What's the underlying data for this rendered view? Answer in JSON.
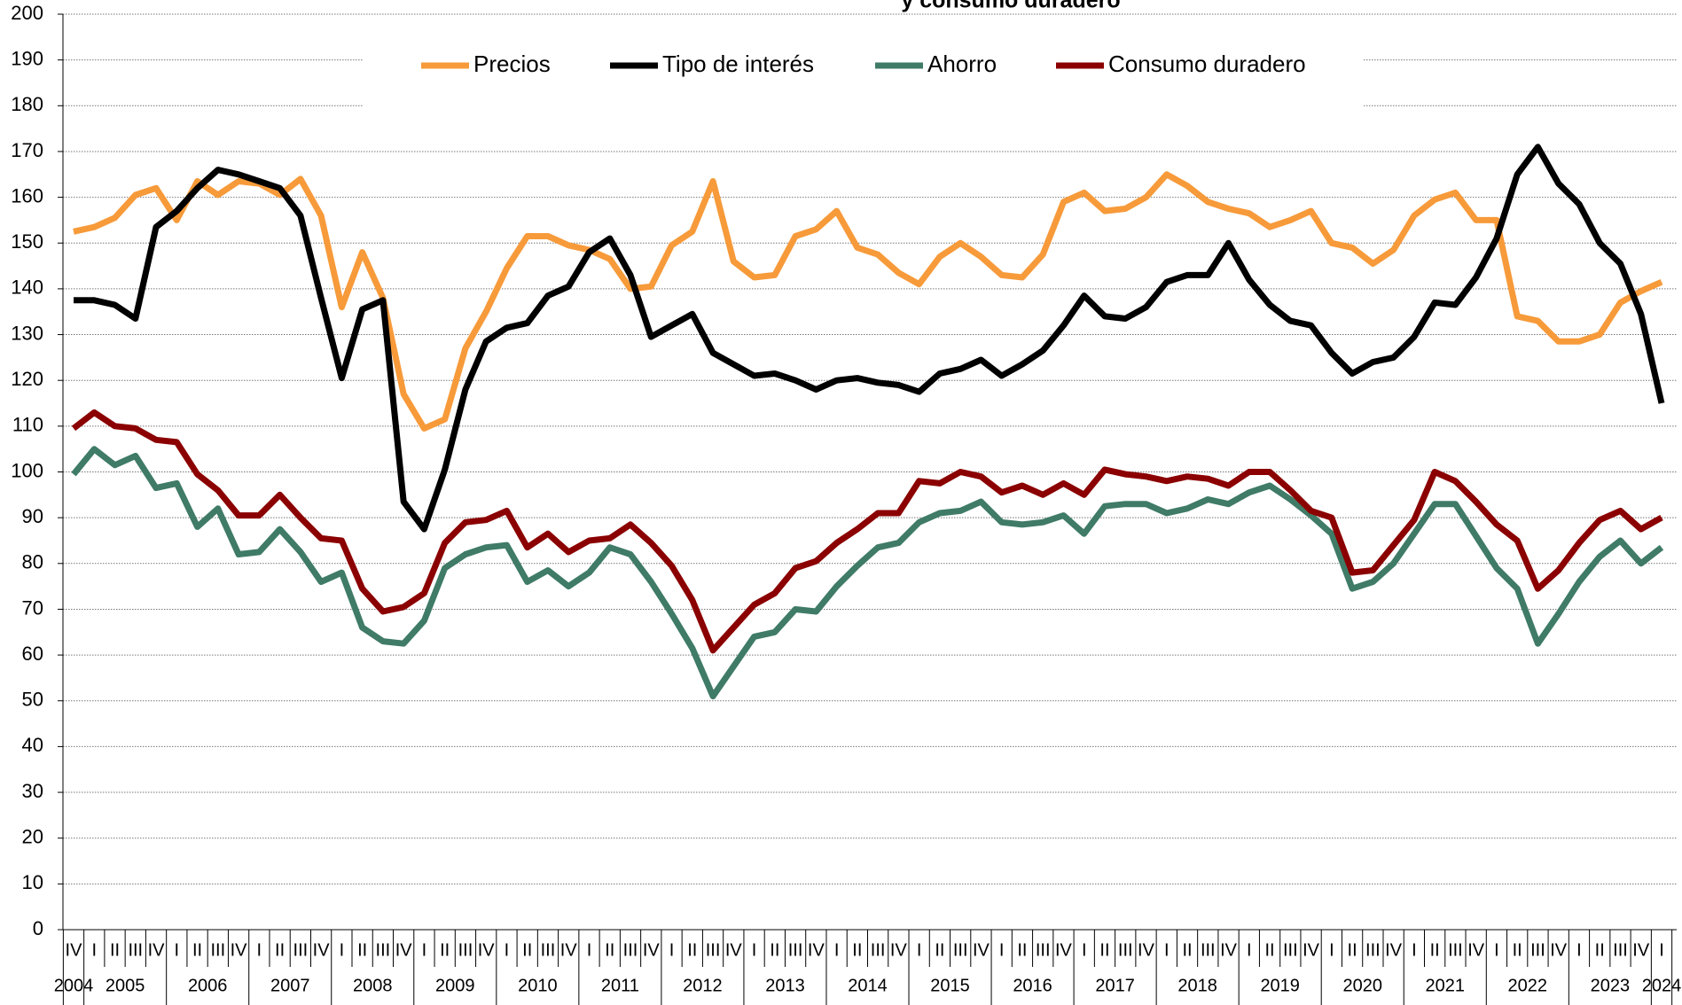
{
  "chart_data": {
    "type": "line",
    "title": "y consumo duradero",
    "ylim": [
      0,
      200
    ],
    "yticks": [
      0,
      10,
      20,
      30,
      40,
      50,
      60,
      70,
      80,
      90,
      100,
      110,
      120,
      130,
      140,
      150,
      160,
      170,
      180,
      190,
      200
    ],
    "grid": true,
    "legend": "top",
    "categories": [
      "IV",
      "I",
      "II",
      "III",
      "IV",
      "I",
      "II",
      "III",
      "IV",
      "I",
      "II",
      "III",
      "IV",
      "I",
      "II",
      "III",
      "IV",
      "I",
      "II",
      "III",
      "IV",
      "I",
      "II",
      "III",
      "IV",
      "I",
      "II",
      "III",
      "IV",
      "I",
      "II",
      "III",
      "IV",
      "I",
      "II",
      "III",
      "IV",
      "I",
      "II",
      "III",
      "IV",
      "I",
      "II",
      "III",
      "IV",
      "I",
      "II",
      "III",
      "IV",
      "I",
      "II",
      "III",
      "IV",
      "I",
      "II",
      "III",
      "IV",
      "I",
      "II",
      "III",
      "IV",
      "I",
      "II",
      "III",
      "IV",
      "I",
      "II",
      "III",
      "IV",
      "I",
      "II",
      "III",
      "IV",
      "I",
      "II",
      "III",
      "IV",
      "I"
    ],
    "years": [
      "2004",
      "2005",
      "2005",
      "2005",
      "2005",
      "2006",
      "2006",
      "2006",
      "2006",
      "2007",
      "2007",
      "2007",
      "2007",
      "2008",
      "2008",
      "2008",
      "2008",
      "2009",
      "2009",
      "2009",
      "2009",
      "2010",
      "2010",
      "2010",
      "2010",
      "2011",
      "2011",
      "2011",
      "2011",
      "2012",
      "2012",
      "2012",
      "2012",
      "2013",
      "2013",
      "2013",
      "2013",
      "2014",
      "2014",
      "2014",
      "2014",
      "2015",
      "2015",
      "2015",
      "2015",
      "2016",
      "2016",
      "2016",
      "2016",
      "2017",
      "2017",
      "2017",
      "2017",
      "2018",
      "2018",
      "2018",
      "2018",
      "2019",
      "2019",
      "2019",
      "2019",
      "2020",
      "2020",
      "2020",
      "2020",
      "2021",
      "2021",
      "2021",
      "2021",
      "2022",
      "2022",
      "2022",
      "2022",
      "2023",
      "2023",
      "2023",
      "2023",
      "2024"
    ],
    "series": [
      {
        "name": "Precios",
        "color": "#f79a3a",
        "values": [
          152.5,
          153.5,
          155.5,
          160.5,
          162,
          155,
          163.5,
          160.5,
          163.5,
          163,
          160.5,
          164,
          156,
          136,
          148,
          138,
          117,
          109.5,
          111.5,
          127,
          135,
          144.5,
          151.5,
          151.5,
          149.5,
          148.5,
          146.5,
          140,
          140.5,
          149.5,
          152.5,
          163.5,
          146,
          142.5,
          143,
          151.5,
          153,
          157,
          149,
          147.5,
          143.5,
          141,
          147,
          150,
          147,
          143,
          142.5,
          147.5,
          159,
          161,
          157,
          157.5,
          160,
          165,
          162.5,
          159,
          157.5,
          156.5,
          153.5,
          155,
          157,
          150,
          149,
          145.5,
          148.5,
          156,
          159.5,
          161,
          155,
          155,
          134,
          133,
          128.5,
          128.5,
          130,
          137,
          139.5,
          141.5
        ]
      },
      {
        "name": "Tipo de interés",
        "color": "#000000",
        "values": [
          137.5,
          137.5,
          136.5,
          133.5,
          153.5,
          157,
          162,
          166,
          165,
          163.5,
          162,
          156,
          138,
          120.5,
          135.5,
          137.5,
          93.5,
          87.5,
          100.5,
          118,
          128.5,
          131.5,
          132.5,
          138.5,
          140.5,
          148,
          151,
          143,
          129.5,
          132,
          134.5,
          126,
          123.5,
          121,
          121.5,
          120,
          118,
          120,
          120.5,
          119.5,
          119,
          117.5,
          121.5,
          122.5,
          124.5,
          121,
          123.5,
          126.5,
          132,
          138.5,
          134,
          133.5,
          136,
          141.5,
          143,
          143,
          150,
          142,
          136.5,
          133,
          132,
          126,
          121.5,
          124,
          125,
          129.5,
          137,
          136.5,
          142.5,
          151,
          165,
          171,
          163,
          158.5,
          150,
          145.5,
          134.5,
          115
        ]
      },
      {
        "name": "Ahorro",
        "color": "#3f7b66",
        "values": [
          99.5,
          105,
          101.5,
          103.5,
          96.5,
          97.5,
          88,
          92,
          82,
          82.5,
          87.5,
          82.5,
          76,
          78,
          66,
          63,
          62.5,
          67.5,
          79,
          82,
          83.5,
          84,
          76,
          78.5,
          75,
          78,
          83.5,
          82,
          76,
          69,
          61.5,
          51,
          57.5,
          64,
          65,
          70,
          69.5,
          75,
          79.5,
          83.5,
          84.5,
          89,
          91,
          91.5,
          93.5,
          89,
          88.5,
          89,
          90.5,
          86.5,
          92.5,
          93,
          93,
          91,
          92,
          94,
          93,
          95.5,
          97,
          94,
          90.5,
          86.5,
          74.5,
          76,
          80,
          86.5,
          93,
          93,
          86,
          79,
          74.5,
          62.5,
          69,
          76,
          81.5,
          85,
          80,
          83.5
        ]
      },
      {
        "name": "Consumo duradero",
        "color": "#8b0000",
        "values": [
          109.5,
          113,
          110,
          109.5,
          107,
          106.5,
          99.5,
          96,
          90.5,
          90.5,
          95,
          90,
          85.5,
          85,
          74.5,
          69.5,
          70.5,
          73.5,
          84.5,
          89,
          89.5,
          91.5,
          83.5,
          86.5,
          82.5,
          85,
          85.5,
          88.5,
          84.5,
          79.5,
          72,
          61,
          66,
          71,
          73.5,
          79,
          80.5,
          84.5,
          87.5,
          91,
          91,
          98,
          97.5,
          100,
          99,
          95.5,
          97,
          95,
          97.5,
          95,
          100.5,
          99.5,
          99,
          98,
          99,
          98.5,
          97,
          100,
          100,
          96,
          91.5,
          90,
          78,
          78.5,
          84,
          89.5,
          100,
          98,
          93.5,
          88.5,
          85,
          74.5,
          78.5,
          84.5,
          89.5,
          91.5,
          87.5,
          90
        ]
      }
    ]
  }
}
